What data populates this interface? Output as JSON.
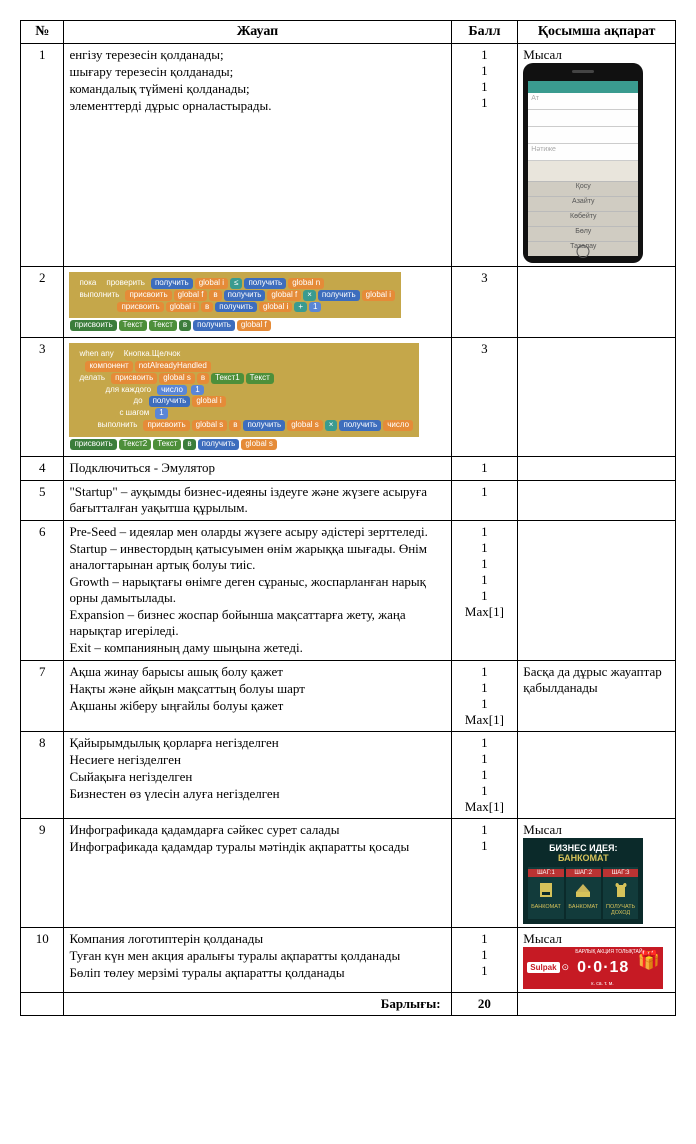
{
  "headers": {
    "num": "№",
    "answer": "Жауап",
    "score": "Балл",
    "extra": "Қосымша ақпарат"
  },
  "rows": [
    {
      "num": "1",
      "answer_lines": [
        "енгізу терезесін қолданады;",
        "шығару терезесін қолданады;",
        "командалық түймені қолданады;",
        "элементтерді дұрыс орналастырады."
      ],
      "scores": [
        "1",
        "1",
        "1",
        "1"
      ],
      "extra_label": "Мысал",
      "extra_type": "phone"
    },
    {
      "num": "2",
      "answer_type": "blockdiag2",
      "scores": [
        "3"
      ]
    },
    {
      "num": "3",
      "answer_type": "blockdiag3",
      "scores": [
        "3"
      ]
    },
    {
      "num": "4",
      "answer_lines": [
        "Подключиться - Эмулятор"
      ],
      "scores": [
        "1"
      ]
    },
    {
      "num": "5",
      "answer_lines": [
        "\"Startup\" – ауқымды бизнес-идеяны іздеуге және жүзеге асыруға бағытталған уақытша құрылым."
      ],
      "scores": [
        "1"
      ]
    },
    {
      "num": "6",
      "answer_lines": [
        "Pre-Seed – идеялар мен оларды жүзеге асыру әдістері зерттеледі.",
        "Startup – инвестордың қатысуымен өнім жарыққа шығады. Өнім аналогтарынан артық болуы тиіс.",
        "Growth – нарықтағы өнімге деген сұраныс, жоспарланған нарық орны дамытылады.",
        "Expansion – бизнес жоспар бойынша мақсаттарға жету, жаңа нарықтар игеріледі.",
        "Exit – компанияның даму шыңына жетеді."
      ],
      "scores": [
        "1",
        "1",
        "1",
        "1",
        "1",
        "Max[1]"
      ]
    },
    {
      "num": "7",
      "answer_lines": [
        "Ақша жинау барысы ашық болу қажет",
        "Нақты және айқын мақсаттың болуы шарт",
        "Ақшаны жіберу ыңғайлы болуы қажет"
      ],
      "scores": [
        "1",
        "1",
        "1",
        "Max[1]"
      ],
      "extra_text": "Басқа да дұрыс жауаптар қабылданады"
    },
    {
      "num": "8",
      "answer_lines": [
        "Қайырымдылық қорларға негізделген",
        "Несиеге негізделген",
        "Сыйақыға негізделген",
        "Бизнестен өз үлесін алуға негізделген"
      ],
      "scores": [
        "1",
        "1",
        "1",
        "1",
        "Max[1]"
      ]
    },
    {
      "num": "9",
      "answer_lines": [
        "Инфографикада қадамдарға сәйкес сурет салады",
        "Инфографикада қадамдар туралы мәтіндік ақпаратты қосады"
      ],
      "answer_justify": [
        false,
        true
      ],
      "scores": [
        "1",
        "1"
      ],
      "extra_label": "Мысал",
      "extra_type": "infocard"
    },
    {
      "num": "10",
      "answer_lines": [
        "Компания логотиптерін қолданады",
        "Туған күн мен акция аралығы туралы ақпаратты қолданады",
        "Бөліп төлеу мерзімі туралы ақпаратты қолданады"
      ],
      "scores": [
        "1",
        "1",
        "",
        "1"
      ],
      "extra_label": "Мысал",
      "extra_type": "banner"
    }
  ],
  "total": {
    "label": "Барлығы:",
    "value": "20"
  },
  "phone": {
    "fields": [
      "Ат",
      "",
      "",
      "Нәтиже"
    ],
    "buttons": [
      "Қосу",
      "Азайту",
      "Көбейту",
      "Бөлу",
      "Тазалау"
    ]
  },
  "block2": {
    "r1": [
      "пока",
      "проверить",
      "получить",
      "global i",
      "≤",
      "получить",
      "global n"
    ],
    "r2": [
      "выполнить",
      "присвоить",
      "global f",
      "в",
      "получить",
      "global f",
      "×",
      "получить",
      "global i"
    ],
    "r3": [
      "присвоить",
      "global i",
      "в",
      "получить",
      "global i",
      "+",
      "1"
    ],
    "r4": [
      "присвоить",
      "Текст",
      "Текст",
      "в",
      "получить",
      "global f"
    ]
  },
  "block3": {
    "r1": [
      "when any",
      "Кнопка.Щелчок"
    ],
    "r2": [
      "компонент",
      "notAlreadyHandled"
    ],
    "r3": [
      "делать",
      "присвоить",
      "global s",
      "в",
      "Текст1",
      "Текст"
    ],
    "r4": [
      "для каждого",
      "число"
    ],
    "r5": [
      "до",
      "получить",
      "global i"
    ],
    "r6": [
      "с шагом",
      "1"
    ],
    "r7": [
      "выполнить",
      "присвоить",
      "global s",
      "в",
      "получить",
      "global s",
      "×",
      "получить",
      "число"
    ],
    "r8": [
      "присвоить",
      "Текст2",
      "Текст",
      "в",
      "получить",
      "global s"
    ]
  },
  "infocard": {
    "title1": "БИЗНЕС ИДЕЯ:",
    "title2": "БАНКОМАТ",
    "steps": [
      {
        "lbl": "ШАГ:1",
        "cap": "БАНКОМАТ"
      },
      {
        "lbl": "ШАГ:2",
        "cap": "БАНКОМАТ"
      },
      {
        "lbl": "ШАГ:3",
        "cap": "ПОЛУЧАТЬ ДОХОД"
      }
    ]
  },
  "banner": {
    "logo": "Sulpak",
    "sub": "БАРЛЫҚ АКЦИЯ ТОЛЫҚТАЙ",
    "timer": "0·0·18",
    "sub2": "к. са.  т. м."
  }
}
